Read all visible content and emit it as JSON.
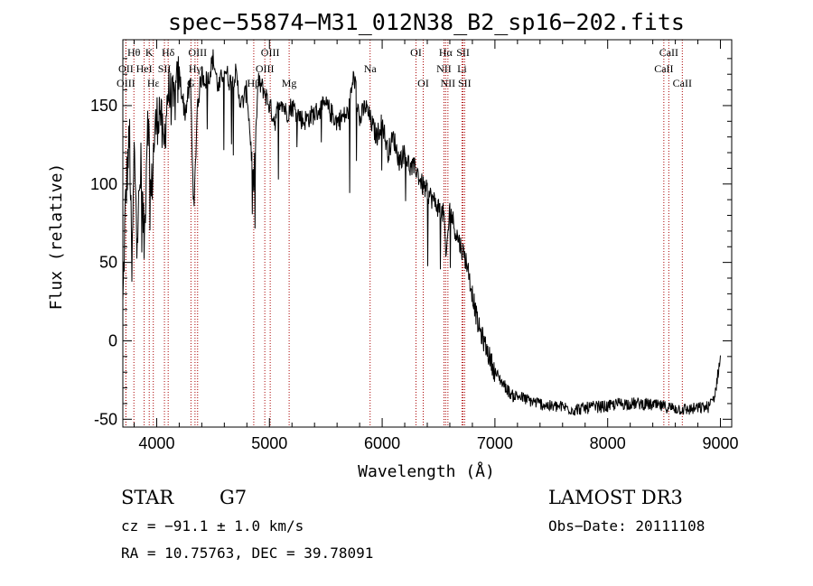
{
  "chart_data": {
    "type": "line",
    "title": "spec−55874−M31_012N38_B2_sp16−202.fits",
    "xlabel": "Wavelength (Å)",
    "ylabel": "Flux (relative)",
    "xlim": [
      3700,
      9100
    ],
    "ylim": [
      -55,
      192
    ],
    "xticks": [
      4000,
      5000,
      6000,
      7000,
      8000,
      9000
    ],
    "yticks": [
      -50,
      0,
      50,
      100,
      150
    ],
    "grid": false,
    "series": [
      {
        "name": "spectrum",
        "color": "#000000",
        "x": [
          3700,
          3720,
          3740,
          3760,
          3780,
          3800,
          3830,
          3860,
          3890,
          3920,
          3950,
          3980,
          4000,
          4030,
          4060,
          4100,
          4150,
          4200,
          4250,
          4300,
          4330,
          4360,
          4400,
          4450,
          4500,
          4550,
          4600,
          4650,
          4700,
          4750,
          4800,
          4860,
          4900,
          4950,
          5000,
          5050,
          5100,
          5150,
          5200,
          5300,
          5400,
          5500,
          5600,
          5700,
          5750,
          5800,
          5850,
          5900,
          5950,
          6000,
          6050,
          6100,
          6150,
          6200,
          6250,
          6300,
          6350,
          6400,
          6450,
          6500,
          6550,
          6563,
          6600,
          6650,
          6700,
          6750,
          6800,
          6850,
          6900,
          6950,
          7000,
          7050,
          7100,
          7150,
          7200,
          7300,
          7400,
          7500,
          7600,
          7700,
          7800,
          7900,
          8000,
          8100,
          8200,
          8300,
          8400,
          8500,
          8600,
          8700,
          8800,
          8900,
          8950,
          9000
        ],
        "y": [
          20,
          80,
          110,
          130,
          40,
          120,
          70,
          110,
          60,
          150,
          90,
          130,
          140,
          150,
          120,
          160,
          150,
          170,
          145,
          165,
          80,
          150,
          170,
          165,
          180,
          160,
          175,
          165,
          170,
          150,
          160,
          100,
          165,
          160,
          150,
          140,
          155,
          145,
          150,
          140,
          145,
          150,
          140,
          145,
          170,
          140,
          150,
          140,
          130,
          140,
          120,
          130,
          115,
          120,
          110,
          110,
          100,
          95,
          90,
          85,
          80,
          50,
          85,
          70,
          60,
          50,
          30,
          10,
          0,
          -10,
          -20,
          -25,
          -30,
          -35,
          -35,
          -38,
          -40,
          -42,
          -42,
          -44,
          -43,
          -42,
          -42,
          -40,
          -40,
          -40,
          -41,
          -42,
          -43,
          -44,
          -43,
          -42,
          -35,
          -10
        ]
      }
    ],
    "lines": [
      {
        "label": "Hθ",
        "wl": 3798,
        "row": 0
      },
      {
        "label": "K",
        "wl": 3934,
        "row": 0
      },
      {
        "label": "Hδ",
        "wl": 4102,
        "row": 0
      },
      {
        "label": "OIII",
        "wl": 4363,
        "row": 0
      },
      {
        "label": "OIII",
        "wl": 5007,
        "row": 0
      },
      {
        "label": "OI",
        "wl": 6300,
        "row": 0
      },
      {
        "label": "Hα",
        "wl": 6563,
        "row": 0
      },
      {
        "label": "SII",
        "wl": 6717,
        "row": 0
      },
      {
        "label": "CaII",
        "wl": 8542,
        "row": 0
      },
      {
        "label": "OII",
        "wl": 3727,
        "row": 1
      },
      {
        "label": "HeI",
        "wl": 3889,
        "row": 1
      },
      {
        "label": "SII",
        "wl": 4069,
        "row": 1
      },
      {
        "label": "Hγ",
        "wl": 4340,
        "row": 1
      },
      {
        "label": "OIII",
        "wl": 4959,
        "row": 1
      },
      {
        "label": "Na",
        "wl": 5893,
        "row": 1
      },
      {
        "label": "NII",
        "wl": 6548,
        "row": 1
      },
      {
        "label": "Li",
        "wl": 6708,
        "row": 1
      },
      {
        "label": "CaII",
        "wl": 8498,
        "row": 1
      },
      {
        "label": "OIII",
        "wl": 3727,
        "row": 2
      },
      {
        "label": "Hε",
        "wl": 3970,
        "row": 2
      },
      {
        "label": "G",
        "wl": 4304,
        "row": 2
      },
      {
        "label": "Hβ",
        "wl": 4861,
        "row": 2
      },
      {
        "label": "Mg",
        "wl": 5175,
        "row": 2
      },
      {
        "label": "OI",
        "wl": 6364,
        "row": 2
      },
      {
        "label": "NII",
        "wl": 6583,
        "row": 2
      },
      {
        "label": "SII",
        "wl": 6731,
        "row": 2
      },
      {
        "label": "CaII",
        "wl": 8662,
        "row": 2
      }
    ]
  },
  "info": {
    "object_class": "STAR",
    "subclass": "G7",
    "cz": "cz = −91.1 ± 1.0 km/s",
    "coords": "RA =  10.75763, DEC =  39.78091",
    "survey": "LAMOST DR3",
    "obs_date": "Obs−Date: 20111108"
  },
  "colors": {
    "line_marker": "#aa0000",
    "spectrum": "#000000"
  }
}
